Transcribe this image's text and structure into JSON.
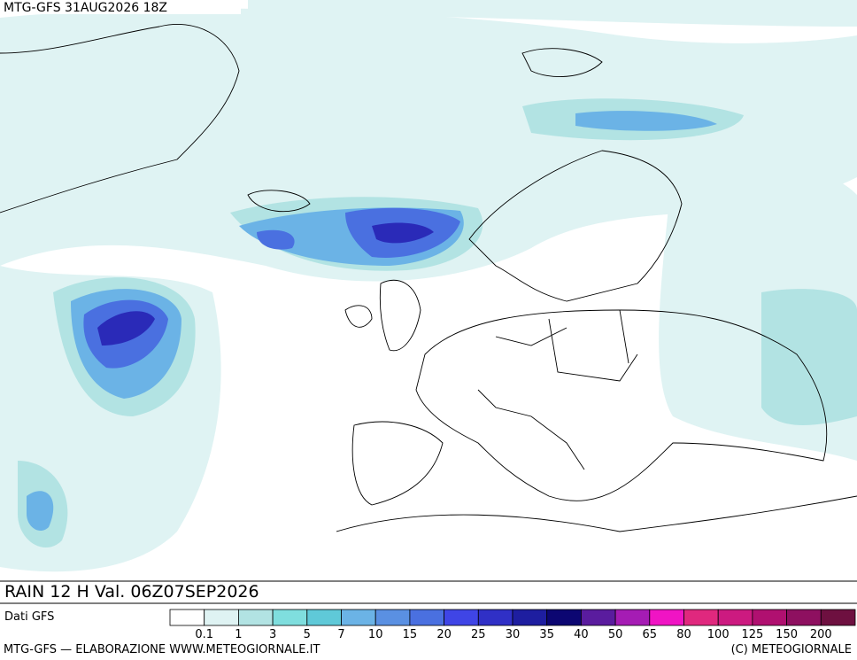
{
  "header": {
    "run": "MTG-GFS 31AUG2026 18Z"
  },
  "title": "RAIN 12 H Val. 06Z07SEP2026",
  "source": "Dati GFS",
  "legend": {
    "labels": [
      "0.1",
      "1",
      "3",
      "5",
      "7",
      "10",
      "15",
      "20",
      "25",
      "30",
      "35",
      "40",
      "50",
      "65",
      "80",
      "100",
      "125",
      "150",
      "200"
    ],
    "colors": [
      "#ffffff",
      "#dff3f3",
      "#b2e3e3",
      "#7fdede",
      "#5fc9d8",
      "#6bb3e6",
      "#5a90e2",
      "#4a70e0",
      "#3f45e6",
      "#3030c6",
      "#1e1ea0",
      "#0c0672",
      "#5a1c9e",
      "#a51cb4",
      "#f014c4",
      "#e0287e",
      "#cc1a80",
      "#b01070",
      "#8e1060",
      "#6e1040"
    ]
  },
  "footer": {
    "left": "MTG-GFS — ELABORAZIONE WWW.METEOGIORNALE.IT",
    "right": "(C) METEOGIORNALE"
  }
}
